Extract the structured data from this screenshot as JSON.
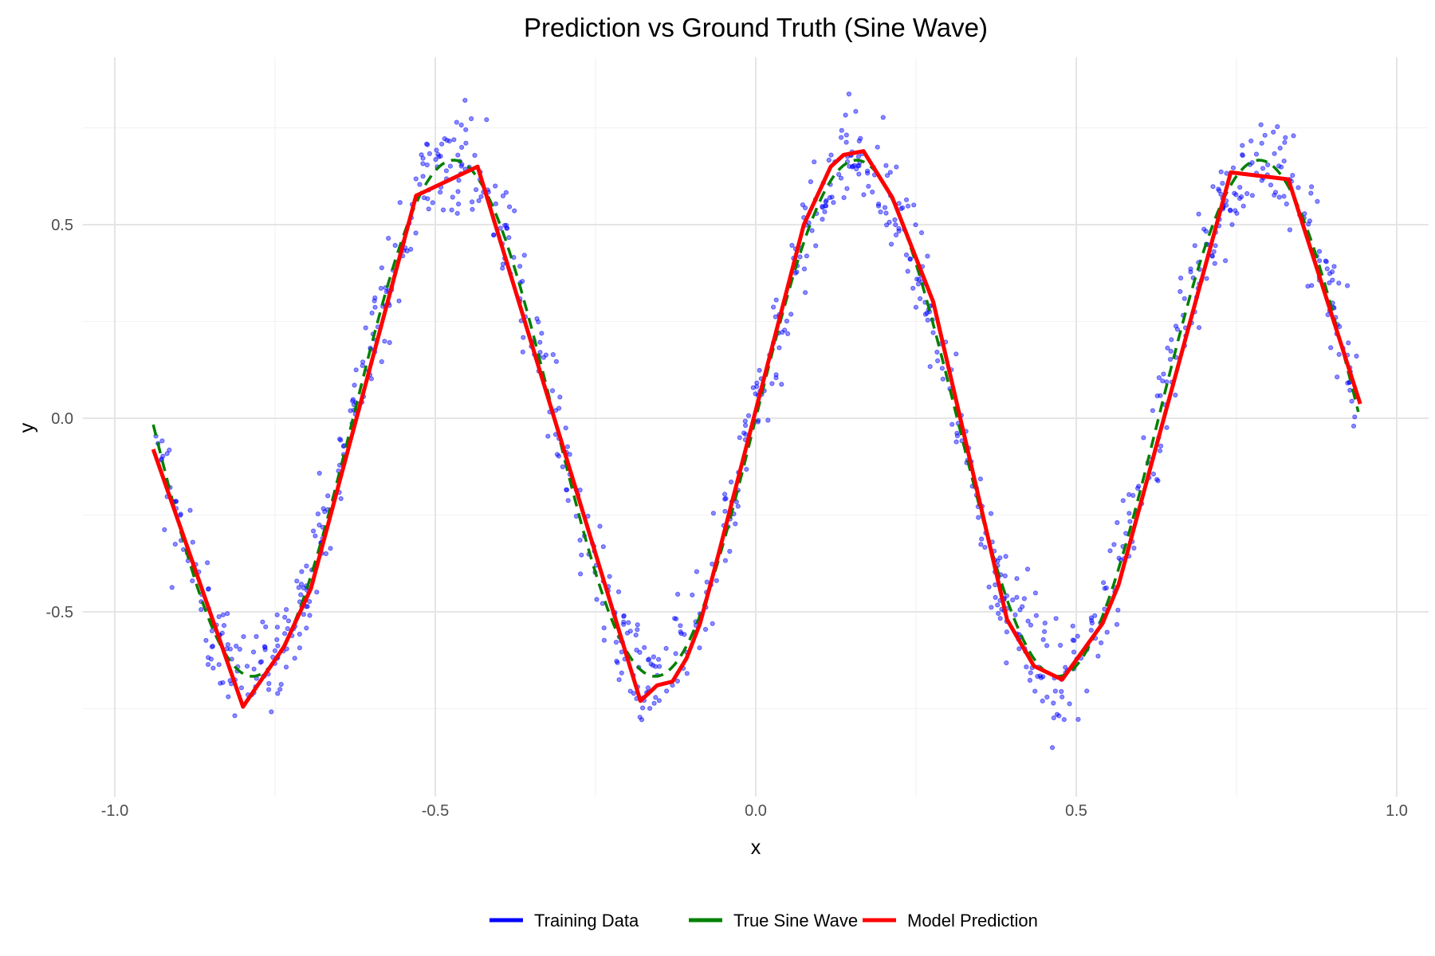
{
  "chart_data": {
    "type": "line",
    "title": "Prediction vs Ground Truth (Sine Wave)",
    "xlabel": "x",
    "ylabel": "y",
    "xlim": [
      -1.05,
      1.05
    ],
    "ylim": [
      -0.97,
      0.93
    ],
    "x_ticks": [
      {
        "value": -1.0,
        "label": "-1.0"
      },
      {
        "value": -0.5,
        "label": "-0.5"
      },
      {
        "value": 0.0,
        "label": "0.0"
      },
      {
        "value": 0.5,
        "label": "0.5"
      },
      {
        "value": 1.0,
        "label": "1.0"
      }
    ],
    "y_ticks": [
      {
        "value": -0.5,
        "label": "-0.5"
      },
      {
        "value": 0.0,
        "label": "0.0"
      },
      {
        "value": 0.5,
        "label": "0.5"
      }
    ],
    "grid": true,
    "legend_position": "bottom",
    "series": [
      {
        "name": "Training Data",
        "kind": "scatter",
        "color": "#0000ff",
        "function": "y = (2/3)*sin(10x) + noise (sd ~0.07)",
        "x_range": [
          -0.94,
          0.94
        ],
        "n_points": 1000
      },
      {
        "name": "True Sine Wave",
        "kind": "line",
        "style": "dashed",
        "color": "#008000",
        "function": "y = (2/3)*sin(10x)",
        "x_range": [
          -0.94,
          0.94
        ]
      },
      {
        "name": "Model Prediction",
        "kind": "line",
        "style": "solid",
        "color": "#ff0000",
        "x": [
          -0.94,
          -0.8,
          -0.736,
          -0.694,
          -0.53,
          -0.434,
          -0.18,
          -0.154,
          -0.13,
          -0.108,
          -0.087,
          -0.058,
          0.075,
          0.117,
          0.137,
          0.168,
          0.213,
          0.277,
          0.392,
          0.434,
          0.478,
          0.541,
          0.566,
          0.741,
          0.831,
          0.943
        ],
        "y": [
          -0.08,
          -0.745,
          -0.59,
          -0.44,
          0.575,
          0.65,
          -0.73,
          -0.69,
          -0.68,
          -0.62,
          -0.53,
          -0.35,
          0.5,
          0.65,
          0.68,
          0.69,
          0.57,
          0.3,
          -0.52,
          -0.64,
          -0.675,
          -0.53,
          -0.43,
          0.635,
          0.617,
          0.037
        ]
      }
    ]
  }
}
